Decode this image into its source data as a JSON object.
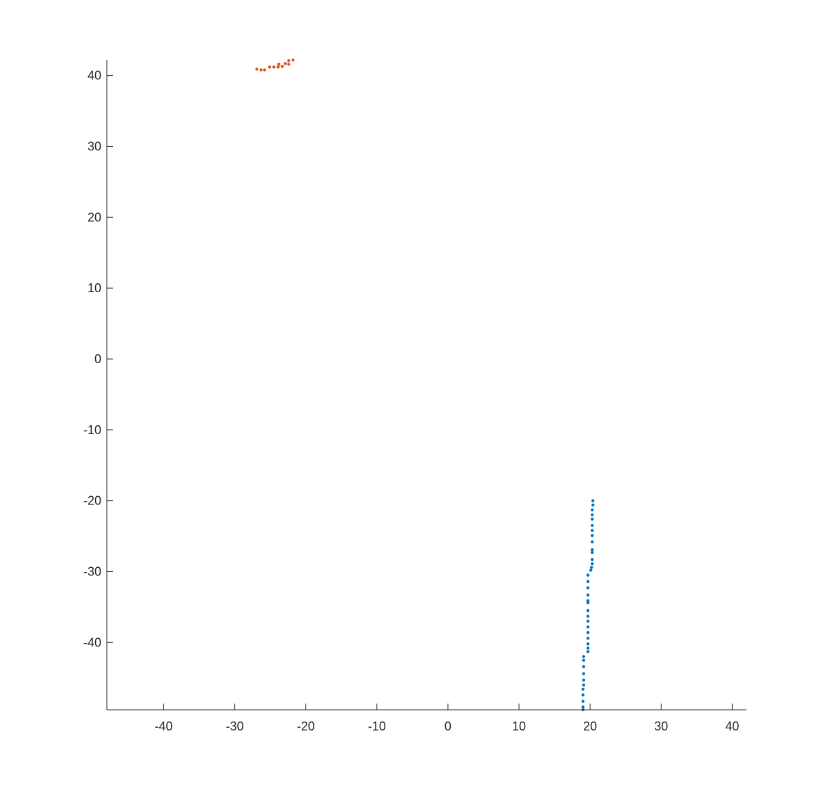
{
  "chart_data": {
    "type": "scatter",
    "title": "",
    "xlabel": "",
    "ylabel": "",
    "xlim": [
      -48,
      42
    ],
    "ylim": [
      -49.5,
      42.2
    ],
    "xticks": [
      -40,
      -30,
      -20,
      -10,
      0,
      10,
      20,
      30,
      40
    ],
    "yticks": [
      -40,
      -30,
      -20,
      -10,
      0,
      10,
      20,
      30,
      40
    ],
    "grid": false,
    "legend": "none",
    "axes_box": "left-bottom",
    "series": [
      {
        "color": "#0072BD",
        "x": [
          20.4,
          20.4,
          20.3,
          20.3,
          20.3,
          20.3,
          20.3,
          20.3,
          20.3,
          20.3,
          20.3,
          20.3,
          20.3,
          20.2,
          20.1,
          19.7,
          19.7,
          19.7,
          19.7,
          19.7,
          19.7,
          19.7,
          19.7,
          19.7,
          19.7,
          19.7,
          19.7,
          19.7,
          19.7,
          19.7,
          19.1,
          19.1,
          19.1,
          19.1,
          19.1,
          19.1,
          19.0,
          19.0,
          19.0,
          19.0,
          19.0
        ],
        "y": [
          -20.0,
          -20.6,
          -21.3,
          -22.0,
          -22.6,
          -23.5,
          -24.2,
          -24.9,
          -25.8,
          -26.9,
          -27.3,
          -28.3,
          -28.9,
          -29.4,
          -29.8,
          -30.5,
          -31.4,
          -32.3,
          -33.3,
          -34.1,
          -34.4,
          -35.5,
          -36.3,
          -37.0,
          -37.8,
          -38.6,
          -39.4,
          -40.2,
          -40.8,
          -41.3,
          -42.0,
          -42.5,
          -43.4,
          -44.4,
          -45.3,
          -46.0,
          -46.6,
          -47.4,
          -48.3,
          -49.1,
          -49.5
        ]
      },
      {
        "color": "#D95319",
        "x": [
          -26.9,
          -26.3,
          -25.8,
          -25.1,
          -24.5,
          -23.9,
          -23.8,
          -23.3,
          -22.9,
          -22.4,
          -22.4,
          -21.8
        ],
        "y": [
          40.9,
          40.8,
          40.8,
          41.2,
          41.2,
          41.2,
          41.6,
          41.3,
          41.7,
          41.6,
          42.1,
          42.2
        ]
      }
    ]
  }
}
